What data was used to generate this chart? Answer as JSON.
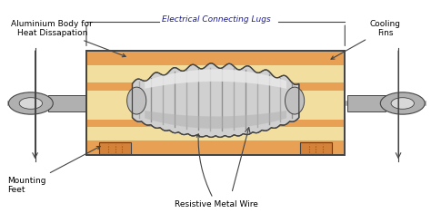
{
  "bg_color": "#ffffff",
  "body_sandy": "#f2dfa0",
  "body_orange_stripe": "#e8a055",
  "body_outer": "#e8a055",
  "wire_base": "#c8c8c8",
  "wire_dark": "#888888",
  "wire_light": "#eeeeee",
  "terminal_gray": "#b0b0b0",
  "terminal_light": "#d8d8d8",
  "terminal_dark": "#888888",
  "foot_orange": "#d4813a",
  "foot_dot": "#aa4400",
  "border": "#444444",
  "text_black": "#000000",
  "text_lugs": "#1a1aaa",
  "labels": {
    "aluminium": "Aluminium Body for\nHeat Dissapation",
    "lugs": "Electrical Connecting Lugs",
    "cooling": "Cooling\nFins",
    "mounting": "Mounting\nFeet",
    "wire": "Resistive Metal Wire"
  },
  "bx": 0.195,
  "by": 0.27,
  "bw": 0.605,
  "bh": 0.495,
  "figw": 4.74,
  "figh": 2.35
}
